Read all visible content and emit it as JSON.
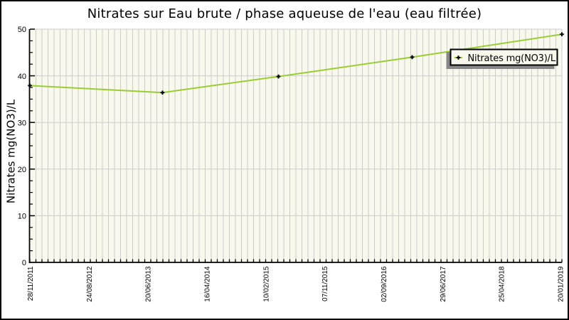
{
  "chart": {
    "title": "Nitrates sur Eau brute / phase aqueuse de l'eau (eau filtrée)",
    "y_axis_label": "Nitrates mg(NO3)/L",
    "legend": {
      "position": "top-right",
      "entries": [
        {
          "label": "Nitrates mg(NO3)/L",
          "line_color": "#9acd32",
          "marker": "black-plus"
        }
      ]
    },
    "colors": {
      "plot_background": "#f8f8ed",
      "grid": "#cccccc",
      "axis": "#000000",
      "series_line": "#9acd32",
      "marker": "#000000",
      "legend_shadow": "#888888",
      "outer_border": "#000000",
      "page_background": "#ffffff"
    }
  },
  "chart_data": {
    "type": "line",
    "title": "Nitrates sur Eau brute / phase aqueuse de l'eau (eau filtrée)",
    "xlabel": "",
    "ylabel": "Nitrates mg(NO3)/L",
    "ylim": [
      0,
      50
    ],
    "y_ticks": [
      0,
      10,
      20,
      30,
      40,
      50
    ],
    "y_minor_tick_step": 2.5,
    "x_tick_labels": [
      "28/11/2011",
      "24/08/2012",
      "20/06/2013",
      "16/04/2014",
      "10/02/2015",
      "07/11/2015",
      "02/09/2016",
      "29/06/2017",
      "25/04/2018",
      "20/01/2019"
    ],
    "grid": "on",
    "legend_position": "top-right",
    "series": [
      {
        "name": "Nitrates mg(NO3)/L",
        "points": [
          {
            "x_frac": 0.0,
            "value": 37.9
          },
          {
            "x_frac": 0.2493,
            "value": 36.4
          },
          {
            "x_frac": 0.4673,
            "value": 39.85
          },
          {
            "x_frac": 0.7186,
            "value": 44.0
          },
          {
            "x_frac": 1.0,
            "value": 48.9
          }
        ]
      }
    ]
  }
}
